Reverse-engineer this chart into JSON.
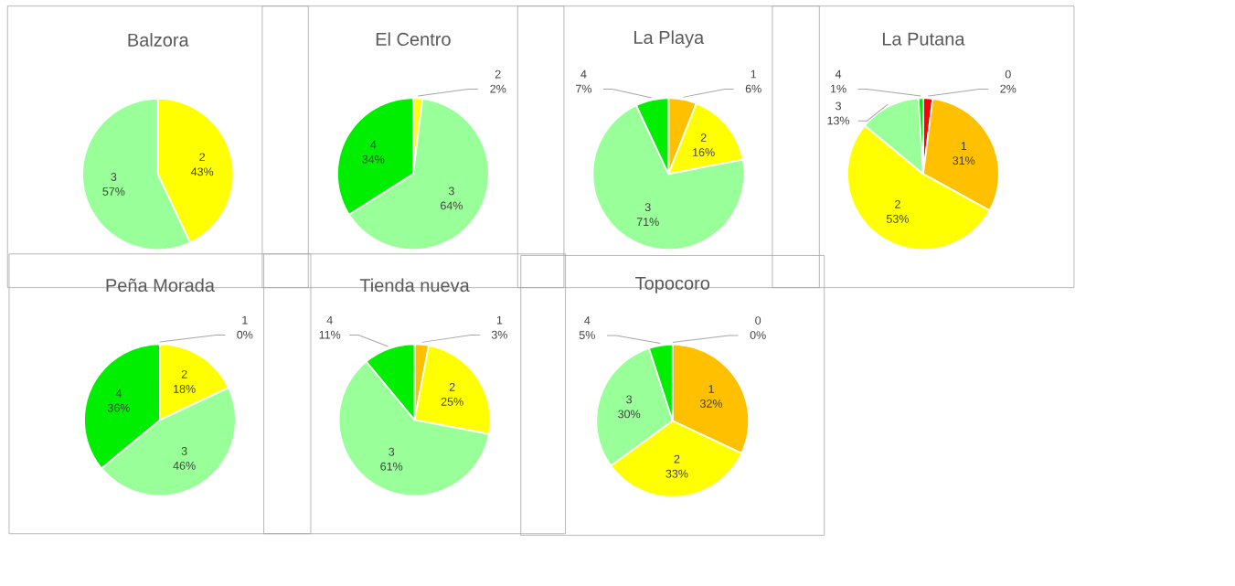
{
  "chart_data": [
    {
      "type": "pie",
      "title": "Balzora",
      "categories": [
        "2",
        "3"
      ],
      "values": [
        43,
        57
      ],
      "colors": [
        "#ffff00",
        "#99ff99"
      ],
      "value_labels": [
        "43%",
        "57%"
      ]
    },
    {
      "type": "pie",
      "title": "El Centro",
      "categories": [
        "2",
        "3",
        "4"
      ],
      "values": [
        2,
        64,
        34
      ],
      "colors": [
        "#ffff00",
        "#99ff99",
        "#00ee00"
      ],
      "value_labels": [
        "2%",
        "64%",
        "34%"
      ]
    },
    {
      "type": "pie",
      "title": "La Playa",
      "categories": [
        "1",
        "2",
        "3",
        "4"
      ],
      "values": [
        6,
        16,
        71,
        7
      ],
      "colors": [
        "#ffc000",
        "#ffff00",
        "#99ff99",
        "#00ee00"
      ],
      "value_labels": [
        "6%",
        "16%",
        "71%",
        "7%"
      ]
    },
    {
      "type": "pie",
      "title": "La Putana",
      "categories": [
        "0",
        "1",
        "2",
        "3",
        "4"
      ],
      "values": [
        2,
        31,
        53,
        13,
        1
      ],
      "colors": [
        "#ff0000",
        "#ffc000",
        "#ffff00",
        "#99ff99",
        "#00ee00"
      ],
      "value_labels": [
        "2%",
        "31%",
        "53%",
        "13%",
        "1%"
      ]
    },
    {
      "type": "pie",
      "title": "Peña Morada",
      "categories": [
        "1",
        "2",
        "3",
        "4"
      ],
      "values": [
        0,
        18,
        46,
        36
      ],
      "colors": [
        "#ffc000",
        "#ffff00",
        "#99ff99",
        "#00ee00"
      ],
      "value_labels": [
        "0%",
        "18%",
        "46%",
        "36%"
      ]
    },
    {
      "type": "pie",
      "title": "Tienda nueva",
      "categories": [
        "1",
        "2",
        "3",
        "4"
      ],
      "values": [
        3,
        25,
        61,
        11
      ],
      "colors": [
        "#ffc000",
        "#ffff00",
        "#99ff99",
        "#00ee00"
      ],
      "value_labels": [
        "3%",
        "25%",
        "61%",
        "11%"
      ]
    },
    {
      "type": "pie",
      "title": "Topocoro",
      "categories": [
        "0",
        "1",
        "2",
        "3",
        "4"
      ],
      "values": [
        0,
        32,
        33,
        30,
        5
      ],
      "colors": [
        "#ff0000",
        "#ffc000",
        "#ffff00",
        "#99ff99",
        "#00ee00"
      ],
      "value_labels": [
        "0%",
        "32%",
        "33%",
        "30%",
        "5%"
      ]
    }
  ]
}
